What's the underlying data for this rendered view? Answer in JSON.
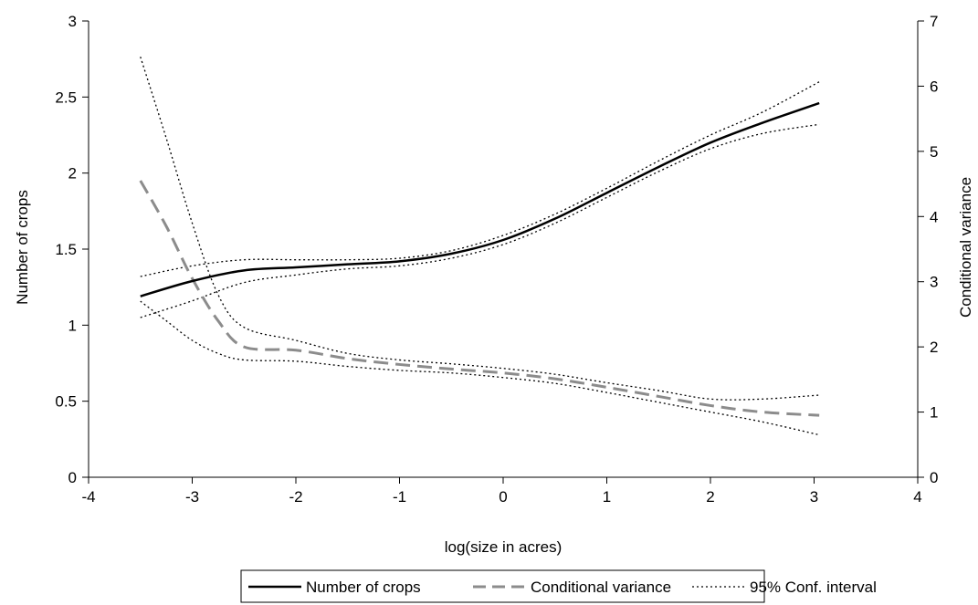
{
  "chart_data": {
    "type": "line",
    "title": "",
    "xlabel": "log(size in acres)",
    "ylabel_left": "Number of crops",
    "ylabel_right": "Conditional variance",
    "xlim": [
      -4,
      4
    ],
    "ylim_left": [
      0,
      3
    ],
    "ylim_right": [
      0,
      7
    ],
    "x_ticks": [
      "-4",
      "-3",
      "-2",
      "-1",
      "0",
      "1",
      "2",
      "3",
      "4"
    ],
    "y_left_ticks": [
      "0",
      "0.5",
      "1",
      "1.5",
      "2",
      "2.5",
      "3"
    ],
    "y_right_ticks": [
      "0",
      "1",
      "2",
      "3",
      "4",
      "5",
      "6",
      "7"
    ],
    "grid": false,
    "legend_position": "bottom",
    "colors": {
      "number_of_crops": "#000000",
      "conditional_variance": "#8c8c8c",
      "conf_interval": "#000000"
    },
    "series": [
      {
        "name": "Number of crops",
        "axis": "left",
        "style": "solid",
        "x": [
          -3.5,
          -3.0,
          -2.5,
          -2.0,
          -1.5,
          -1.0,
          -0.5,
          0.0,
          0.5,
          1.0,
          1.5,
          2.0,
          2.5,
          3.05
        ],
        "y": [
          1.19,
          1.29,
          1.36,
          1.38,
          1.4,
          1.42,
          1.47,
          1.56,
          1.7,
          1.87,
          2.04,
          2.2,
          2.33,
          2.46
        ]
      },
      {
        "name": "Conditional variance",
        "axis": "right",
        "style": "dashed",
        "x": [
          -3.5,
          -3.25,
          -3.0,
          -2.75,
          -2.5,
          -2.0,
          -1.5,
          -1.0,
          -0.5,
          0.0,
          0.5,
          1.0,
          1.5,
          2.0,
          2.5,
          3.05
        ],
        "y": [
          4.55,
          3.85,
          3.05,
          2.4,
          2.0,
          1.95,
          1.82,
          1.73,
          1.66,
          1.6,
          1.51,
          1.38,
          1.24,
          1.1,
          1.0,
          0.95
        ]
      },
      {
        "name": "95% Conf. interval",
        "axis": "left",
        "style": "dotted",
        "x": [
          -3.5,
          -3.0,
          -2.5,
          -2.0,
          -1.5,
          -1.0,
          -0.5,
          0.0,
          0.5,
          1.0,
          1.5,
          2.0,
          2.5,
          3.05
        ],
        "y": [
          1.32,
          1.39,
          1.43,
          1.43,
          1.43,
          1.44,
          1.49,
          1.59,
          1.73,
          1.9,
          2.08,
          2.25,
          2.4,
          2.6
        ]
      },
      {
        "axis": "left",
        "style": "dotted",
        "x": [
          -3.5,
          -3.0,
          -2.5,
          -2.0,
          -1.5,
          -1.0,
          -0.5,
          0.0,
          0.5,
          1.0,
          1.5,
          2.0,
          2.5,
          3.05
        ],
        "y": [
          1.05,
          1.16,
          1.28,
          1.33,
          1.37,
          1.39,
          1.44,
          1.53,
          1.67,
          1.84,
          2.01,
          2.16,
          2.26,
          2.32
        ]
      },
      {
        "axis": "right",
        "style": "dotted",
        "x": [
          -3.5,
          -3.25,
          -3.0,
          -2.75,
          -2.5,
          -2.0,
          -1.5,
          -1.0,
          -0.5,
          0.0,
          0.5,
          1.0,
          1.5,
          2.0,
          2.5,
          3.05
        ],
        "y": [
          6.45,
          5.2,
          3.9,
          2.8,
          2.3,
          2.1,
          1.9,
          1.8,
          1.74,
          1.67,
          1.58,
          1.45,
          1.33,
          1.2,
          1.2,
          1.26
        ]
      },
      {
        "axis": "right",
        "style": "dotted",
        "x": [
          -3.5,
          -3.25,
          -3.0,
          -2.75,
          -2.5,
          -2.0,
          -1.5,
          -1.0,
          -0.5,
          0.0,
          0.5,
          1.0,
          1.5,
          2.0,
          2.5,
          3.05
        ],
        "y": [
          2.7,
          2.4,
          2.1,
          1.9,
          1.8,
          1.78,
          1.7,
          1.64,
          1.6,
          1.53,
          1.44,
          1.3,
          1.15,
          1.0,
          0.85,
          0.65
        ]
      }
    ]
  }
}
